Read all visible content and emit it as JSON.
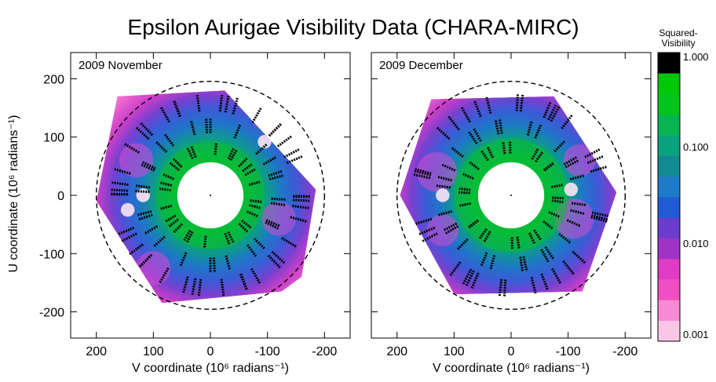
{
  "chart_data": {
    "type": "heatmap",
    "title": "Epsilon Aurigae Visibility Data (CHARA-MIRC)",
    "panels": [
      {
        "label": "2009 November",
        "xlabel": "V coordinate (10⁶ radians⁻¹)",
        "ylabel": "U coordinate (10⁶ radians⁻¹)",
        "xlim": [
          245,
          -245
        ],
        "ylim": [
          -245,
          245
        ],
        "xticks": [
          200,
          100,
          0,
          -100,
          -200
        ],
        "yticks": [
          200,
          100,
          0,
          -100,
          -200
        ],
        "dashed_circle_radius": 200,
        "coverage_hexagon": [
          [
            163,
            170
          ],
          [
            -25,
            180
          ],
          [
            -185,
            10
          ],
          [
            -160,
            -140
          ],
          [
            -125,
            -165
          ],
          [
            85,
            -185
          ],
          [
            200,
            -10
          ]
        ],
        "white_hole_radius": 58,
        "green_radius": 95,
        "purple_lobes": [
          {
            "center": [
              130,
              60
            ],
            "radius": 30
          },
          {
            "center": [
              -120,
              -40
            ],
            "radius": 30
          },
          {
            "center": [
              100,
              -125
            ],
            "radius": 30
          },
          {
            "center": [
              -100,
              140
            ],
            "radius": 30
          }
        ],
        "white_spots": [
          [
            -95,
            92
          ],
          [
            118,
            0
          ],
          [
            145,
            -25
          ]
        ],
        "track_rings": [
          {
            "radius": 160,
            "angles": [
              100,
              85,
              70,
              55,
              35,
              20,
              10,
              160,
              175,
              190,
              205,
              225,
              255,
              270,
              285,
              300,
              320,
              340,
              355,
              130,
              142
            ],
            "length": 30
          },
          {
            "radius": 120,
            "angles": [
              95,
              75,
              50,
              30,
              10,
              170,
              150,
              190,
              210,
              235,
              260,
              290,
              315,
              335
            ],
            "length": 26
          },
          {
            "radius": 80,
            "angles": [
              70,
              50,
              30,
              10,
              110,
              130,
              150,
              170,
              200,
              220,
              240,
              270,
              300,
              330
            ],
            "length": 20
          }
        ]
      },
      {
        "label": "2009 December",
        "xlabel": "V coordinate (10⁶ radians⁻¹)",
        "xlim": [
          245,
          -245
        ],
        "ylim": [
          -245,
          245
        ],
        "xticks": [
          200,
          100,
          0,
          -100,
          -200
        ],
        "dashed_circle_radius": 200,
        "coverage_hexagon": [
          [
            140,
            165
          ],
          [
            -75,
            170
          ],
          [
            -185,
            5
          ],
          [
            -125,
            -165
          ],
          [
            100,
            -170
          ],
          [
            195,
            0
          ]
        ],
        "white_hole_radius": 58,
        "green_radius": 100,
        "purple_lobes": [
          {
            "center": [
              130,
              40
            ],
            "radius": 35
          },
          {
            "center": [
              -110,
              -40
            ],
            "radius": 35
          },
          {
            "center": [
              120,
              -60
            ],
            "radius": 28
          },
          {
            "center": [
              -120,
              60
            ],
            "radius": 28
          }
        ],
        "white_spots": [
          [
            120,
            0
          ],
          [
            -105,
            10
          ]
        ],
        "track_rings": [
          {
            "radius": 160,
            "angles": [
              110,
              90,
              70,
              55,
              35,
              20,
              160,
              185,
              200,
              230,
              250,
              270,
              290,
              310,
              340,
              350,
              125
            ],
            "length": 30
          },
          {
            "radius": 120,
            "angles": [
              100,
              80,
              60,
              30,
              10,
              150,
              170,
              200,
              220,
              245,
              265,
              290,
              320,
              340
            ],
            "length": 26
          },
          {
            "radius": 82,
            "angles": [
              80,
              60,
              30,
              10,
              120,
              140,
              165,
              190,
              215,
              240,
              275,
              300,
              330
            ],
            "length": 20
          }
        ]
      }
    ],
    "colorbar": {
      "title_line1": "Squared-",
      "title_line2": "Visibility",
      "scale": "log",
      "tick_labels": [
        "1.000",
        "0.100",
        "0.010",
        "0.001"
      ],
      "bands": [
        "#f9c6e6",
        "#f78ad2",
        "#f24ec3",
        "#e03cc6",
        "#a032c6",
        "#6a3bcd",
        "#1e5bd4",
        "#1e7bc9",
        "#118a94",
        "#0aa37e",
        "#06b450",
        "#00c51c",
        "#00c708",
        "#000000"
      ]
    }
  }
}
